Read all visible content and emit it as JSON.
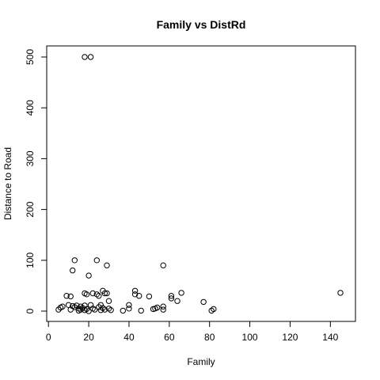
{
  "chart_data": {
    "type": "scatter",
    "title": "Family vs DistRd",
    "xlabel": "Family",
    "ylabel": "Distance to Road",
    "xlim": [
      0,
      150
    ],
    "ylim": [
      0,
      500
    ],
    "xticks": [
      0,
      20,
      40,
      60,
      80,
      100,
      120,
      140
    ],
    "yticks": [
      0,
      100,
      200,
      300,
      400,
      500
    ],
    "grid": false,
    "point_style": "open-circle",
    "points": [
      {
        "x": 18,
        "y": 500
      },
      {
        "x": 21,
        "y": 500
      },
      {
        "x": 13,
        "y": 100
      },
      {
        "x": 24,
        "y": 100
      },
      {
        "x": 29,
        "y": 90
      },
      {
        "x": 57,
        "y": 90
      },
      {
        "x": 12,
        "y": 80
      },
      {
        "x": 20,
        "y": 70
      },
      {
        "x": 145,
        "y": 36
      },
      {
        "x": 5,
        "y": 3
      },
      {
        "x": 6,
        "y": 7
      },
      {
        "x": 7,
        "y": 9
      },
      {
        "x": 9,
        "y": 30
      },
      {
        "x": 10,
        "y": 12
      },
      {
        "x": 11,
        "y": 29
      },
      {
        "x": 11,
        "y": 3
      },
      {
        "x": 12,
        "y": 10
      },
      {
        "x": 13,
        "y": 8
      },
      {
        "x": 14,
        "y": 11
      },
      {
        "x": 15,
        "y": 5
      },
      {
        "x": 15,
        "y": 1
      },
      {
        "x": 16,
        "y": 9
      },
      {
        "x": 16,
        "y": 3
      },
      {
        "x": 17,
        "y": 6
      },
      {
        "x": 18,
        "y": 35
      },
      {
        "x": 18,
        "y": 11
      },
      {
        "x": 18,
        "y": 2
      },
      {
        "x": 19,
        "y": 33
      },
      {
        "x": 19,
        "y": 4
      },
      {
        "x": 20,
        "y": 0
      },
      {
        "x": 21,
        "y": 12
      },
      {
        "x": 22,
        "y": 35
      },
      {
        "x": 22,
        "y": 5
      },
      {
        "x": 23,
        "y": 3
      },
      {
        "x": 24,
        "y": 33
      },
      {
        "x": 25,
        "y": 30
      },
      {
        "x": 25,
        "y": 8
      },
      {
        "x": 26,
        "y": 12
      },
      {
        "x": 26,
        "y": 2
      },
      {
        "x": 27,
        "y": 40
      },
      {
        "x": 27,
        "y": 6
      },
      {
        "x": 28,
        "y": 35
      },
      {
        "x": 28,
        "y": 3
      },
      {
        "x": 29,
        "y": 35
      },
      {
        "x": 30,
        "y": 20
      },
      {
        "x": 30,
        "y": 5
      },
      {
        "x": 31,
        "y": 2
      },
      {
        "x": 37,
        "y": 1
      },
      {
        "x": 40,
        "y": 12
      },
      {
        "x": 40,
        "y": 5
      },
      {
        "x": 43,
        "y": 40
      },
      {
        "x": 43,
        "y": 33
      },
      {
        "x": 45,
        "y": 30
      },
      {
        "x": 46,
        "y": 1
      },
      {
        "x": 50,
        "y": 29
      },
      {
        "x": 52,
        "y": 4
      },
      {
        "x": 53,
        "y": 5
      },
      {
        "x": 54,
        "y": 7
      },
      {
        "x": 57,
        "y": 9
      },
      {
        "x": 57,
        "y": 3
      },
      {
        "x": 61,
        "y": 30
      },
      {
        "x": 61,
        "y": 25
      },
      {
        "x": 64,
        "y": 20
      },
      {
        "x": 66,
        "y": 36
      },
      {
        "x": 77,
        "y": 18
      },
      {
        "x": 81,
        "y": 1
      },
      {
        "x": 82,
        "y": 4
      }
    ]
  }
}
